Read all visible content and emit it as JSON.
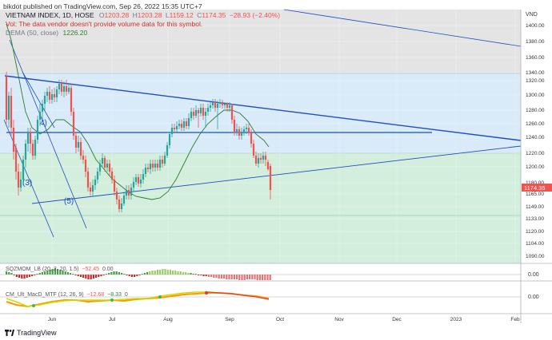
{
  "header": {
    "published_line": "bikdot published on TradingView.com, Sep 26, 2022 15:35 UTC+7"
  },
  "legend": {
    "symbol": "VIETNAM INDEX, 1D, HOSE",
    "open_label": "O",
    "open": "1203.28",
    "high_label": "H",
    "high": "1203.28",
    "low_label": "L",
    "low": "1159.12",
    "close_label": "C",
    "close": "1174.35",
    "change": "−28.93 (−2.40%)",
    "volume_note": "Vol: The data vendor doesn't provide volume data for this symbol.",
    "dema_label": "DEMA (50, close)",
    "dema_value": "1226.20"
  },
  "price_axis": {
    "currency": "VND",
    "ticks": [
      "1400.00",
      "1380.00",
      "1360.00",
      "1340.00",
      "1320.00",
      "1300.00",
      "1280.00",
      "1260.00",
      "1240.00",
      "1220.00",
      "1200.00",
      "1180.00",
      "1165.00",
      "1149.00",
      "1133.00",
      "1120.00",
      "1104.00",
      "1090.00"
    ],
    "last_price": "1174.35",
    "last_price_color": "#ef5350"
  },
  "time_axis": {
    "ticks": [
      "Jun",
      "Jul",
      "Aug",
      "Sep",
      "Oct",
      "Nov",
      "Dec",
      "2023",
      "Feb"
    ]
  },
  "annotations": {
    "wave_4": "4)",
    "wave_3": "(3)",
    "wave_5": "(5)"
  },
  "indicators": {
    "sqzmom": {
      "label": "SQZMOM_LB (20, 2, 20, 1.5)",
      "value": "−52.45",
      "extra": "0.00",
      "axis_value": "0.00"
    },
    "macd": {
      "label": "CM_Ult_MacD_MTF (12, 26, 9)",
      "value1": "−12.68",
      "value2": "−8.33",
      "value3": "0",
      "axis_value": "0.00"
    }
  },
  "colors": {
    "up": "#26a69a",
    "down": "#ef5350",
    "trendline": "#1f4fbf",
    "dema": "#2e7d32",
    "band_gray": "#e0e0e0",
    "band_blue": "#d6e9f8",
    "band_green": "#d5eedc"
  },
  "footer": {
    "brand": "TradingView",
    "logo_icon": "tradingview-logo-icon"
  }
}
